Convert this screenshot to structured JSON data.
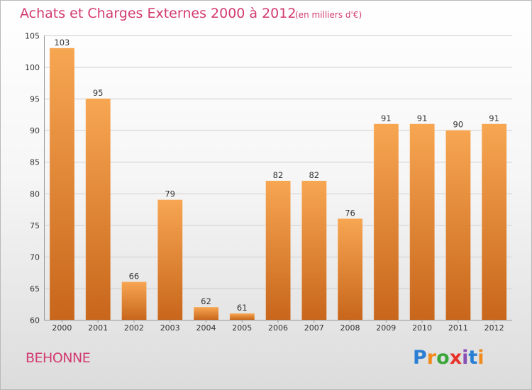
{
  "header": {
    "title": "Achats et Charges Externes 2000 à 2012",
    "unit": "(en milliers d'€)"
  },
  "footer": {
    "commune": "BEHONNE",
    "logo_letters": [
      "P",
      "r",
      "o",
      "x",
      "i",
      "t",
      "i"
    ],
    "logo_colors": [
      "#2a7fd4",
      "#f08a1c",
      "#3aa63a",
      "#e8332a",
      "#8a4fb5",
      "#2a7fd4",
      "#f08a1c"
    ]
  },
  "colors": {
    "bar_top": "#f7a652",
    "bar_bottom": "#c8661b",
    "title": "#d23a70"
  },
  "chart_data": {
    "type": "bar",
    "title": "Achats et Charges Externes 2000 à 2012",
    "subtitle": "(en milliers d'€)",
    "xlabel": "",
    "ylabel": "",
    "categories": [
      "2000",
      "2001",
      "2002",
      "2003",
      "2004",
      "2005",
      "2006",
      "2007",
      "2008",
      "2009",
      "2010",
      "2011",
      "2012"
    ],
    "values": [
      103,
      95,
      66,
      79,
      62,
      61,
      82,
      82,
      76,
      91,
      91,
      90,
      91
    ],
    "ylim": [
      60,
      105
    ],
    "yticks": [
      60,
      65,
      70,
      75,
      80,
      85,
      90,
      95,
      100,
      105
    ],
    "grid": true,
    "legend": "none"
  }
}
